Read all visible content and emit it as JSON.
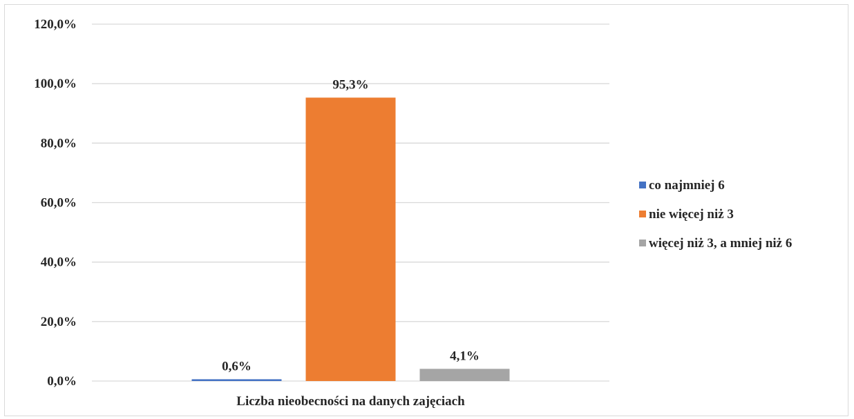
{
  "chart_data": {
    "type": "bar",
    "categories": [
      "Liczba nieobecności na danych zajęciach"
    ],
    "series": [
      {
        "name": "co najmniej 6",
        "values": [
          0.6
        ],
        "label": "0,6%",
        "color": "#4472c4"
      },
      {
        "name": "nie więcej niż 3",
        "values": [
          95.3
        ],
        "label": "95,3%",
        "color": "#ed7d31"
      },
      {
        "name": "więcej niż 3, a mniej niż 6",
        "values": [
          4.1
        ],
        "label": "4,1%",
        "color": "#a5a5a5"
      }
    ],
    "ylim": [
      0,
      120
    ],
    "yticks": [
      0,
      20,
      40,
      60,
      80,
      100,
      120
    ],
    "ytick_labels": [
      "0,0%",
      "20,0%",
      "40,0%",
      "60,0%",
      "80,0%",
      "100,0%",
      "120,0%"
    ],
    "grid": true,
    "legend_position": "right"
  }
}
